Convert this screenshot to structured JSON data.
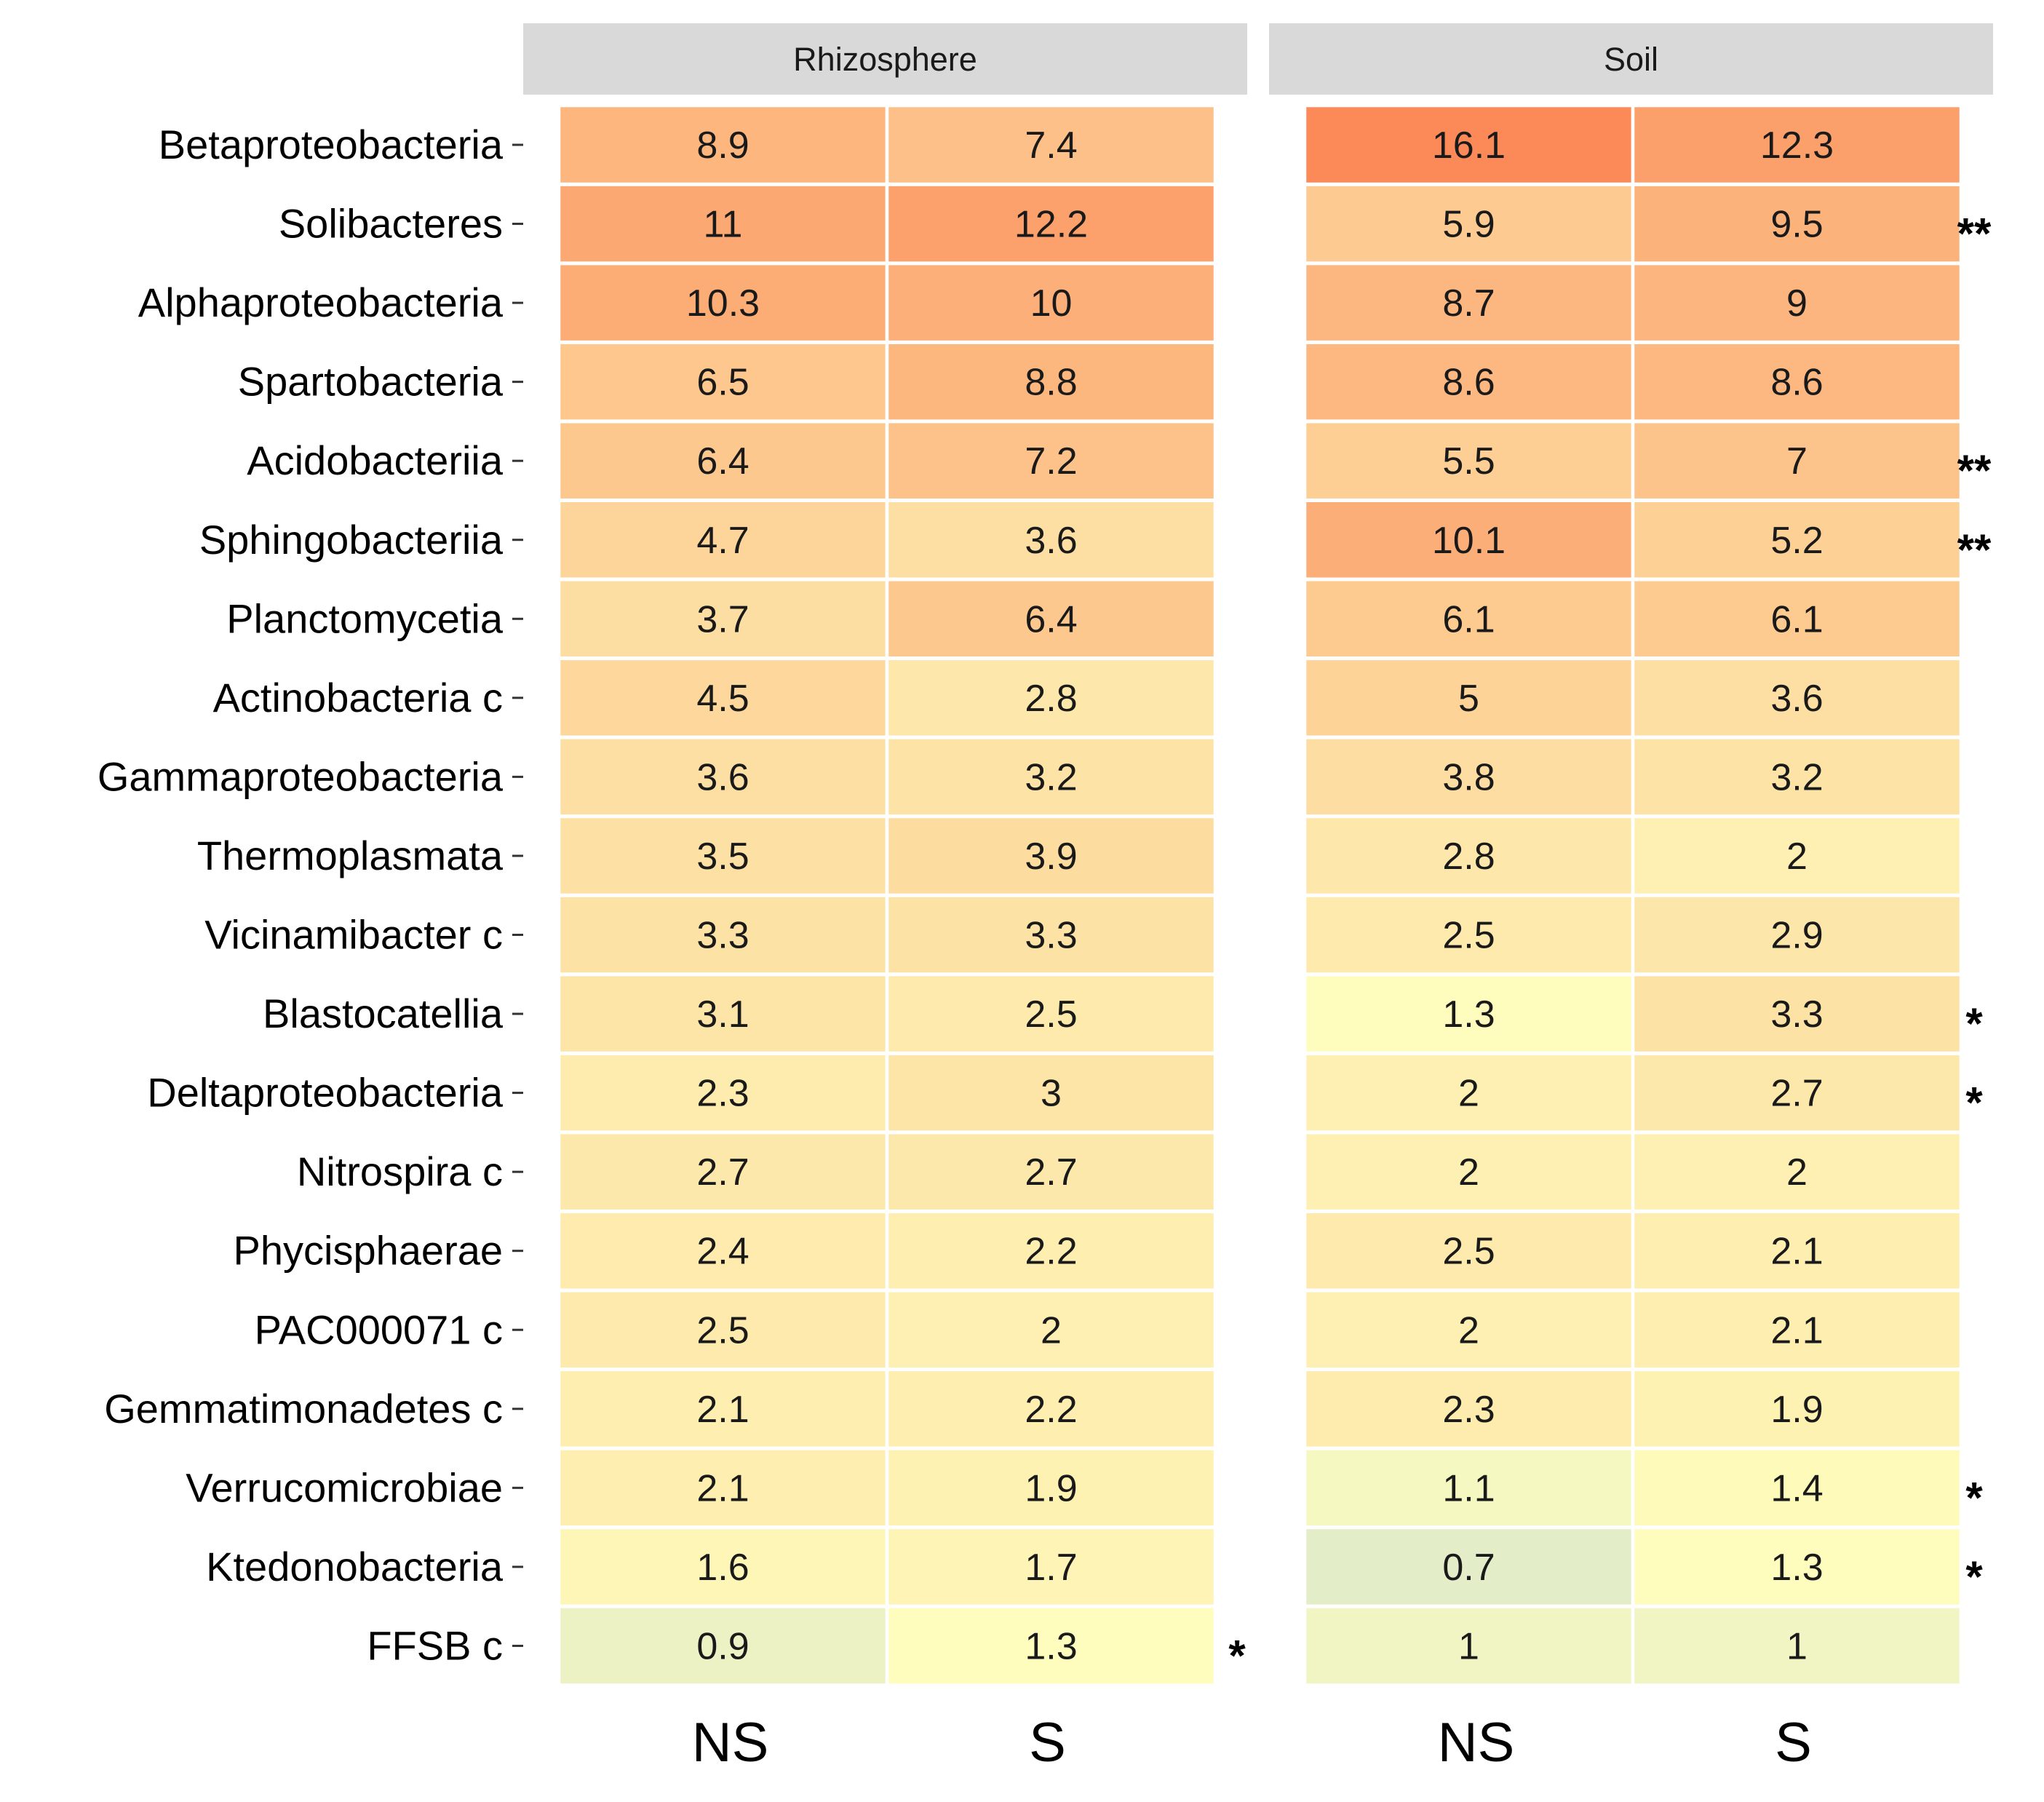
{
  "chart_data": {
    "type": "heatmap",
    "facets": [
      "Rhizosphere",
      "Soil"
    ],
    "columns": [
      "NS",
      "S"
    ],
    "rows": [
      "Betaproteobacteria",
      "Solibacteres",
      "Alphaproteobacteria",
      "Spartobacteria",
      "Acidobacteriia",
      "Sphingobacteriia",
      "Planctomycetia",
      "Actinobacteria c",
      "Gammaproteobacteria",
      "Thermoplasmata",
      "Vicinamibacter c",
      "Blastocatellia",
      "Deltaproteobacteria",
      "Nitrospira c",
      "Phycisphaerae",
      "PAC000071 c",
      "Gemmatimonadetes c",
      "Verrucomicrobiae",
      "Ktedonobacteria",
      "FFSB c"
    ],
    "values": {
      "Rhizosphere": {
        "NS": [
          8.9,
          11,
          10.3,
          6.5,
          6.4,
          4.7,
          3.7,
          4.5,
          3.6,
          3.5,
          3.3,
          3.1,
          2.3,
          2.7,
          2.4,
          2.5,
          2.1,
          2.1,
          1.6,
          0.9
        ],
        "S": [
          7.4,
          12.2,
          10,
          8.8,
          7.2,
          3.6,
          6.4,
          2.8,
          3.2,
          3.9,
          3.3,
          2.5,
          3,
          2.7,
          2.2,
          2,
          2.2,
          1.9,
          1.7,
          1.3
        ]
      },
      "Soil": {
        "NS": [
          16.1,
          5.9,
          8.7,
          8.6,
          5.5,
          10.1,
          6.1,
          5,
          3.8,
          2.8,
          2.5,
          1.3,
          2,
          2,
          2.5,
          2,
          2.3,
          1.1,
          0.7,
          1
        ],
        "S": [
          12.3,
          9.5,
          9,
          8.6,
          7,
          5.2,
          6.1,
          3.6,
          3.2,
          2,
          2.9,
          3.3,
          2.7,
          2,
          2.1,
          2.1,
          1.9,
          1.4,
          1.3,
          1
        ]
      }
    },
    "significance": {
      "Rhizosphere": [
        "",
        "",
        "",
        "",
        "",
        "",
        "",
        "",
        "",
        "",
        "",
        "",
        "",
        "",
        "",
        "",
        "",
        "",
        "",
        "*"
      ],
      "Soil": [
        "",
        "**",
        "",
        "",
        "**",
        "**",
        "",
        "",
        "",
        "",
        "",
        "*",
        "*",
        "",
        "",
        "",
        "",
        "*",
        "*",
        ""
      ]
    },
    "color_scale": {
      "low": "#e3edc8",
      "mid": "#fefdbd",
      "high": "#fb8a58",
      "value_range": [
        0.7,
        16.1
      ]
    },
    "strip_color": "#d9d9d9",
    "title": "",
    "xlabel": "",
    "ylabel": ""
  }
}
